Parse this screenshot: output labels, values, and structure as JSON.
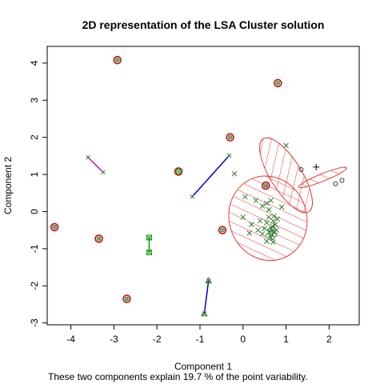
{
  "chart_data": {
    "type": "scatter",
    "title": "2D representation of the LSA Cluster solution",
    "xlabel": "Component 1",
    "ylabel": "Component 2",
    "footnote": "These two components explain 19.7 % of the point variability.",
    "xlim": [
      -4.55,
      2.7
    ],
    "ylim": [
      -3.05,
      4.45
    ],
    "xticks": [
      -4,
      -3,
      -2,
      -1,
      0,
      1,
      2
    ],
    "yticks": [
      -3,
      -2,
      -1,
      0,
      1,
      2,
      3,
      4
    ],
    "grid": false,
    "colors": {
      "singleton_marker": "#cc0000",
      "point_mark": "#2e7d32",
      "ellipse": "#e53935",
      "segment_blue": "#0000cc",
      "segment_magenta": "#cc00cc",
      "segment_green": "#00aa00",
      "plus_mark": "#000000"
    },
    "singletons": [
      {
        "x": -2.92,
        "y": 4.08,
        "mark": "x"
      },
      {
        "x": 0.81,
        "y": 3.46,
        "mark": "x"
      },
      {
        "x": -0.3,
        "y": 2.0,
        "mark": "x"
      },
      {
        "x": -1.5,
        "y": 1.08,
        "mark": "square"
      },
      {
        "x": 0.53,
        "y": 0.7,
        "mark": "x"
      },
      {
        "x": -4.38,
        "y": -0.42,
        "mark": "x"
      },
      {
        "x": -3.35,
        "y": -0.73,
        "mark": "x"
      },
      {
        "x": -0.48,
        "y": -0.5,
        "mark": "x"
      },
      {
        "x": -2.7,
        "y": -2.35,
        "mark": "x"
      }
    ],
    "segments": [
      {
        "color": "segment_magenta",
        "points": [
          {
            "x": -3.6,
            "y": 1.46,
            "mark": "x"
          },
          {
            "x": -3.25,
            "y": 1.06,
            "mark": "x"
          }
        ]
      },
      {
        "color": "segment_blue",
        "points": [
          {
            "x": -1.18,
            "y": 0.4,
            "mark": "x"
          },
          {
            "x": -0.32,
            "y": 1.51,
            "mark": "x"
          }
        ]
      },
      {
        "color": "segment_green",
        "points": [
          {
            "x": -2.18,
            "y": -0.7,
            "mark": "square"
          },
          {
            "x": -2.18,
            "y": -1.1,
            "mark": "square"
          }
        ]
      },
      {
        "color": "segment_blue",
        "points": [
          {
            "x": -0.9,
            "y": -2.75,
            "mark": "triangle"
          },
          {
            "x": -0.8,
            "y": -1.86,
            "mark": "triangle"
          }
        ]
      }
    ],
    "ellipses": [
      {
        "cx": 0.58,
        "cy": -0.18,
        "rx": 0.9,
        "ry": 1.15,
        "angle": -20
      },
      {
        "cx": 1.0,
        "cy": 0.98,
        "rx": 1.0,
        "ry": 0.42,
        "angle": 58
      },
      {
        "cx": 1.85,
        "cy": 0.92,
        "rx": 0.6,
        "ry": 0.1,
        "angle": -22
      }
    ],
    "cluster_points": [
      {
        "x": -0.2,
        "y": 1.02
      },
      {
        "x": 1.0,
        "y": 1.78
      },
      {
        "x": 0.05,
        "y": 0.4
      },
      {
        "x": 0.3,
        "y": 0.3
      },
      {
        "x": 0.45,
        "y": 0.15
      },
      {
        "x": 0.55,
        "y": 0.22
      },
      {
        "x": 0.6,
        "y": 0.05
      },
      {
        "x": 0.65,
        "y": 0.3
      },
      {
        "x": 0.9,
        "y": 0.12
      },
      {
        "x": 0.0,
        "y": -0.15
      },
      {
        "x": 0.2,
        "y": -0.35
      },
      {
        "x": 0.35,
        "y": -0.5
      },
      {
        "x": 0.45,
        "y": -0.6
      },
      {
        "x": 0.5,
        "y": -0.45
      },
      {
        "x": 0.55,
        "y": -0.3
      },
      {
        "x": 0.6,
        "y": -0.15
      },
      {
        "x": 0.62,
        "y": -0.55
      },
      {
        "x": 0.65,
        "y": -0.7
      },
      {
        "x": 0.68,
        "y": -0.4
      },
      {
        "x": 0.7,
        "y": -0.25
      },
      {
        "x": 0.72,
        "y": -0.55
      },
      {
        "x": 0.75,
        "y": -0.35
      },
      {
        "x": 0.78,
        "y": -0.5
      },
      {
        "x": 0.8,
        "y": -0.2
      },
      {
        "x": 0.55,
        "y": -0.8
      },
      {
        "x": 0.7,
        "y": -0.82
      },
      {
        "x": 0.15,
        "y": -0.58
      },
      {
        "x": 0.4,
        "y": -0.25
      },
      {
        "x": 0.72,
        "y": -0.12
      },
      {
        "x": 0.66,
        "y": -0.45
      }
    ],
    "cluster_circles": [
      {
        "x": 0.62,
        "y": -0.5
      },
      {
        "x": 0.66,
        "y": -0.58
      },
      {
        "x": 0.7,
        "y": -0.45
      },
      {
        "x": 0.74,
        "y": -0.62
      },
      {
        "x": 0.58,
        "y": -0.65
      },
      {
        "x": 0.68,
        "y": -0.7
      }
    ],
    "tail_points": [
      {
        "x": 1.35,
        "y": 1.13,
        "mark": "circle"
      },
      {
        "x": 2.15,
        "y": 0.75,
        "mark": "circle"
      },
      {
        "x": 2.3,
        "y": 0.84,
        "mark": "circle"
      }
    ],
    "plus_points": [
      {
        "x": 1.7,
        "y": 1.2
      }
    ]
  }
}
